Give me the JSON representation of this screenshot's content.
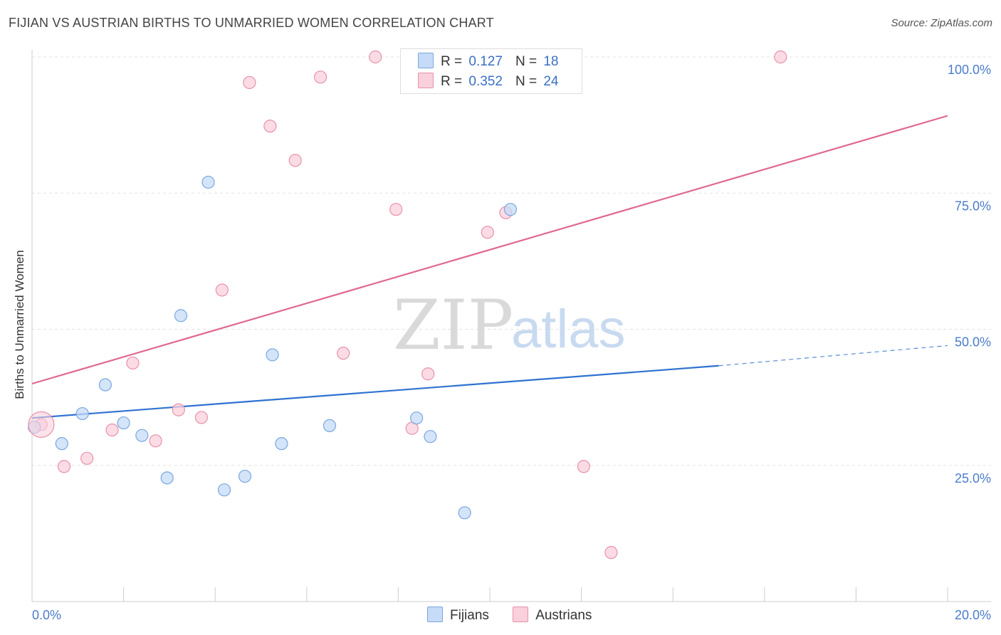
{
  "title": "FIJIAN VS AUSTRIAN BIRTHS TO UNMARRIED WOMEN CORRELATION CHART",
  "source": "Source: ZipAtlas.com",
  "watermark": {
    "zip": "ZIP",
    "atlas": "atlas"
  },
  "legend": {
    "r_label": "R =",
    "n_label": "N =",
    "rows": [
      {
        "r": "0.127",
        "n": "18",
        "color": "#b7d2f5",
        "border": "#7aa7e0"
      },
      {
        "r": "0.352",
        "n": "24",
        "color": "#f9c9d6",
        "border": "#e890aa"
      }
    ]
  },
  "bottom_legend": {
    "fijians": "Fijians",
    "austrians": "Austrians"
  },
  "chart_data": {
    "type": "scatter",
    "title": "FIJIAN VS AUSTRIAN BIRTHS TO UNMARRIED WOMEN CORRELATION CHART",
    "xlabel": "",
    "ylabel": "Births to Unmarried Women",
    "xlim": [
      0,
      20
    ],
    "ylim": [
      0,
      102
    ],
    "x_tick_labels": [
      "0.0%",
      "20.0%"
    ],
    "y_tick_labels": [
      "100.0%",
      "75.0%",
      "50.0%",
      "25.0%"
    ],
    "grid": true,
    "legend_position": "top-center",
    "series": [
      {
        "name": "Fijians",
        "color": "#7aa7e0",
        "fill": "#c6dbf7",
        "line_color": "#2f72d1",
        "R": 0.127,
        "N": 18,
        "trend": {
          "x0": 0.0,
          "y0": 33.7,
          "x1": 15.0,
          "y1": 43.3,
          "dash_to_x": 20.0,
          "dash_to_y": 47.0
        },
        "points": [
          {
            "x": 0.05,
            "y": 32.0
          },
          {
            "x": 0.65,
            "y": 29.0
          },
          {
            "x": 1.1,
            "y": 34.5
          },
          {
            "x": 1.6,
            "y": 39.8
          },
          {
            "x": 2.0,
            "y": 32.8
          },
          {
            "x": 2.4,
            "y": 30.5
          },
          {
            "x": 2.95,
            "y": 22.7
          },
          {
            "x": 3.25,
            "y": 52.5
          },
          {
            "x": 3.85,
            "y": 77.0
          },
          {
            "x": 4.2,
            "y": 20.5
          },
          {
            "x": 4.65,
            "y": 23.0
          },
          {
            "x": 5.25,
            "y": 45.3
          },
          {
            "x": 5.45,
            "y": 29.0
          },
          {
            "x": 6.5,
            "y": 32.3
          },
          {
            "x": 8.4,
            "y": 33.7
          },
          {
            "x": 8.7,
            "y": 30.3
          },
          {
            "x": 9.45,
            "y": 16.3
          },
          {
            "x": 10.45,
            "y": 72.0
          }
        ]
      },
      {
        "name": "Austrians",
        "color": "#e890aa",
        "fill": "#f9d0dc",
        "line_color": "#e0688f",
        "R": 0.352,
        "N": 24,
        "trend": {
          "x0": 0.0,
          "y0": 40.0,
          "x1": 20.0,
          "y1": 89.2
        },
        "points": [
          {
            "x": 0.2,
            "y": 32.5
          },
          {
            "x": 0.7,
            "y": 24.8
          },
          {
            "x": 1.2,
            "y": 26.3
          },
          {
            "x": 1.75,
            "y": 31.5
          },
          {
            "x": 2.2,
            "y": 43.8
          },
          {
            "x": 2.7,
            "y": 29.5
          },
          {
            "x": 3.2,
            "y": 35.2
          },
          {
            "x": 3.7,
            "y": 33.8
          },
          {
            "x": 4.15,
            "y": 57.2
          },
          {
            "x": 4.75,
            "y": 95.3
          },
          {
            "x": 5.2,
            "y": 87.3
          },
          {
            "x": 5.75,
            "y": 81.0
          },
          {
            "x": 6.3,
            "y": 96.3
          },
          {
            "x": 6.8,
            "y": 45.6
          },
          {
            "x": 7.5,
            "y": 100.0
          },
          {
            "x": 7.95,
            "y": 72.0
          },
          {
            "x": 8.3,
            "y": 31.8
          },
          {
            "x": 8.65,
            "y": 41.8
          },
          {
            "x": 9.95,
            "y": 67.8
          },
          {
            "x": 10.35,
            "y": 71.4
          },
          {
            "x": 11.2,
            "y": 100.0
          },
          {
            "x": 12.05,
            "y": 24.8
          },
          {
            "x": 12.65,
            "y": 9.0
          },
          {
            "x": 16.35,
            "y": 100.0
          }
        ]
      }
    ]
  }
}
